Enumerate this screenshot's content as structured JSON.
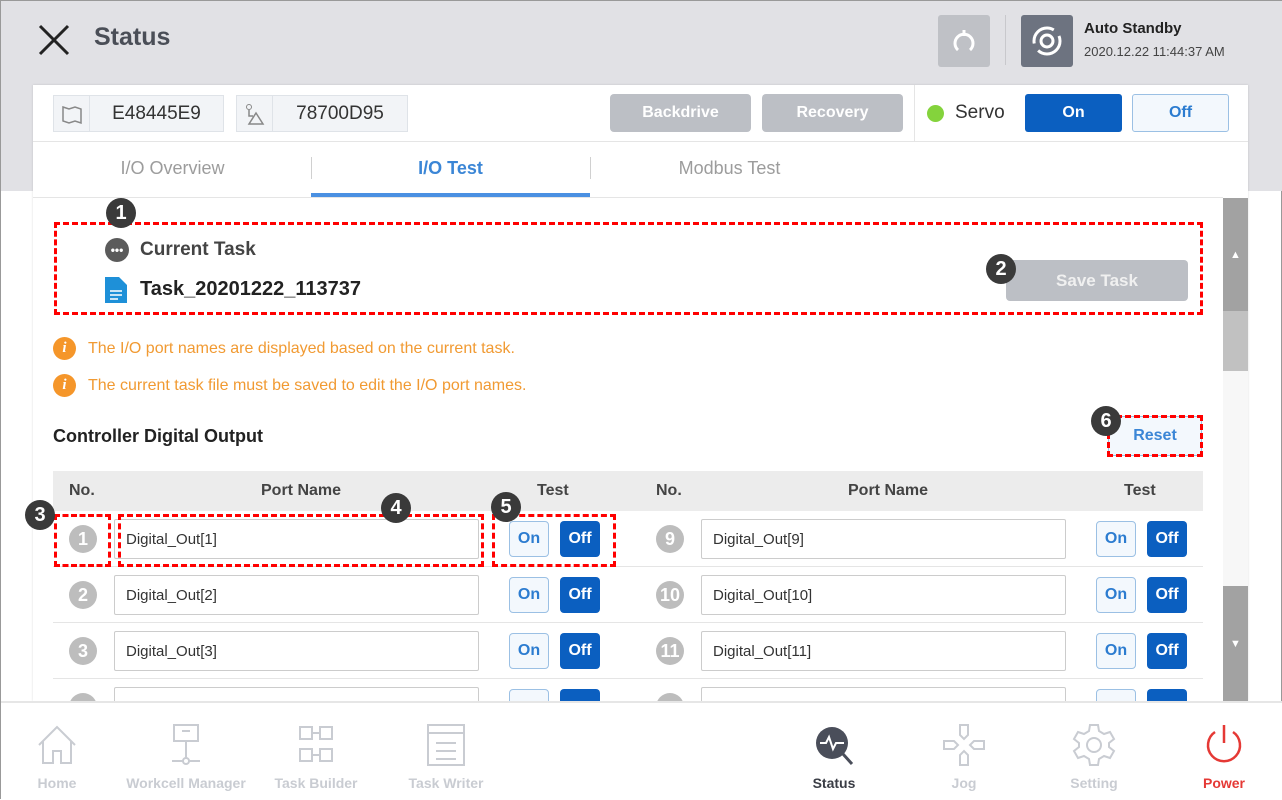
{
  "header": {
    "title": "Status",
    "mode": "Auto Standby",
    "datetime": "2020.12.22 11:44:37 AM"
  },
  "toolbar": {
    "controller_id": "E48445E9",
    "robot_id": "78700D95",
    "backdrive": "Backdrive",
    "recovery": "Recovery",
    "servo_label": "Servo",
    "servo_on": "On",
    "servo_off": "Off",
    "servo_status_color": "#84d33c"
  },
  "tabs": [
    {
      "label": "I/O Overview"
    },
    {
      "label": "I/O Test",
      "active": true
    },
    {
      "label": "Modbus Test"
    }
  ],
  "current_task": {
    "label": "Current Task",
    "name": "Task_20201222_113737",
    "save_label": "Save Task"
  },
  "notices": [
    "The I/O port names are displayed based on the current task.",
    "The current task file must be saved to edit the I/O port names."
  ],
  "section": {
    "title": "Controller Digital Output",
    "reset_label": "Reset"
  },
  "table": {
    "headers": {
      "no": "No.",
      "port": "Port Name",
      "test": "Test"
    },
    "left": [
      {
        "no": "1",
        "port": "Digital_Out[1]",
        "on": "On",
        "off": "Off"
      },
      {
        "no": "2",
        "port": "Digital_Out[2]",
        "on": "On",
        "off": "Off"
      },
      {
        "no": "3",
        "port": "Digital_Out[3]",
        "on": "On",
        "off": "Off"
      }
    ],
    "right": [
      {
        "no": "9",
        "port": "Digital_Out[9]",
        "on": "On",
        "off": "Off"
      },
      {
        "no": "10",
        "port": "Digital_Out[10]",
        "on": "On",
        "off": "Off"
      },
      {
        "no": "11",
        "port": "Digital_Out[11]",
        "on": "On",
        "off": "Off"
      }
    ]
  },
  "annotations": [
    "1",
    "2",
    "3",
    "4",
    "5",
    "6"
  ],
  "nav": [
    {
      "label": "Home",
      "icon": "home-icon"
    },
    {
      "label": "Workcell Manager",
      "icon": "workcell-icon"
    },
    {
      "label": "Task Builder",
      "icon": "task-builder-icon"
    },
    {
      "label": "Task Writer",
      "icon": "task-writer-icon"
    },
    {
      "label": "Status",
      "icon": "status-icon",
      "active": true
    },
    {
      "label": "Jog",
      "icon": "jog-icon"
    },
    {
      "label": "Setting",
      "icon": "gear-icon"
    },
    {
      "label": "Power",
      "icon": "power-icon",
      "color": "#e53935"
    }
  ]
}
